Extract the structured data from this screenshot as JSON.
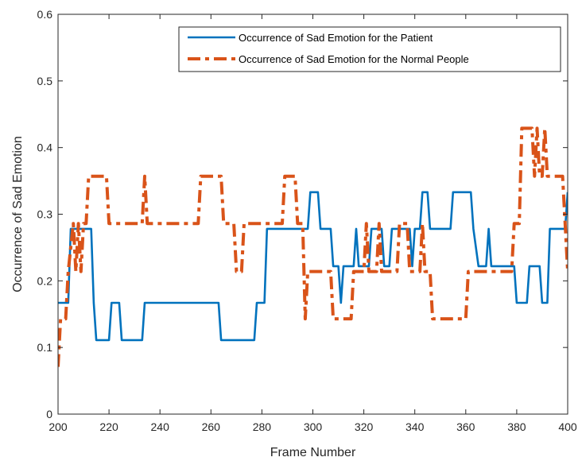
{
  "chart_data": {
    "type": "line",
    "title": "",
    "xlabel": "Frame Number",
    "ylabel": "Occurrence of Sad Emotion",
    "xlim": [
      200,
      400
    ],
    "ylim": [
      0,
      0.6
    ],
    "xticks": [
      200,
      220,
      240,
      260,
      280,
      300,
      320,
      340,
      360,
      380,
      400
    ],
    "yticks": [
      0,
      0.1,
      0.2,
      0.3,
      0.4,
      0.5,
      0.6
    ],
    "xtick_labels": [
      "200",
      "220",
      "240",
      "260",
      "280",
      "300",
      "320",
      "340",
      "360",
      "380",
      "400"
    ],
    "ytick_labels": [
      "0",
      "0.1",
      "0.2",
      "0.3",
      "0.4",
      "0.5",
      "0.6"
    ],
    "grid": false,
    "legend_position": "top-right",
    "series": [
      {
        "name": "Occurrence of Sad Emotion for the Patient",
        "color": "#0072BD",
        "style": "solid",
        "points": [
          [
            200,
            0.167
          ],
          [
            204,
            0.167
          ],
          [
            205,
            0.278
          ],
          [
            213,
            0.278
          ],
          [
            214,
            0.167
          ],
          [
            215,
            0.111
          ],
          [
            220,
            0.111
          ],
          [
            221,
            0.167
          ],
          [
            224,
            0.167
          ],
          [
            225,
            0.111
          ],
          [
            233,
            0.111
          ],
          [
            234,
            0.167
          ],
          [
            263,
            0.167
          ],
          [
            264,
            0.111
          ],
          [
            277,
            0.111
          ],
          [
            278,
            0.167
          ],
          [
            281,
            0.167
          ],
          [
            282,
            0.278
          ],
          [
            298,
            0.278
          ],
          [
            299,
            0.333
          ],
          [
            302,
            0.333
          ],
          [
            303,
            0.278
          ],
          [
            307,
            0.278
          ],
          [
            308,
            0.222
          ],
          [
            310,
            0.222
          ],
          [
            311,
            0.167
          ],
          [
            312,
            0.222
          ],
          [
            316,
            0.222
          ],
          [
            317,
            0.278
          ],
          [
            318,
            0.222
          ],
          [
            322,
            0.222
          ],
          [
            323,
            0.278
          ],
          [
            327,
            0.278
          ],
          [
            328,
            0.222
          ],
          [
            330,
            0.222
          ],
          [
            331,
            0.278
          ],
          [
            338,
            0.278
          ],
          [
            339,
            0.222
          ],
          [
            340,
            0.278
          ],
          [
            342,
            0.278
          ],
          [
            343,
            0.333
          ],
          [
            345,
            0.333
          ],
          [
            346,
            0.278
          ],
          [
            354,
            0.278
          ],
          [
            355,
            0.333
          ],
          [
            362,
            0.333
          ],
          [
            363,
            0.278
          ],
          [
            365,
            0.222
          ],
          [
            368,
            0.222
          ],
          [
            369,
            0.278
          ],
          [
            370,
            0.222
          ],
          [
            379,
            0.222
          ],
          [
            380,
            0.167
          ],
          [
            384,
            0.167
          ],
          [
            385,
            0.222
          ],
          [
            389,
            0.222
          ],
          [
            390,
            0.167
          ],
          [
            392,
            0.167
          ],
          [
            393,
            0.278
          ],
          [
            399,
            0.278
          ],
          [
            400,
            0.333
          ]
        ]
      },
      {
        "name": "Occurrence of Sad Emotion for the Normal People",
        "color": "#D95319",
        "style": "dashed",
        "points": [
          [
            200,
            0.071
          ],
          [
            201,
            0.143
          ],
          [
            203,
            0.143
          ],
          [
            204,
            0.214
          ],
          [
            206,
            0.286
          ],
          [
            207,
            0.214
          ],
          [
            208,
            0.286
          ],
          [
            209,
            0.214
          ],
          [
            210,
            0.286
          ],
          [
            211,
            0.286
          ],
          [
            212,
            0.357
          ],
          [
            219,
            0.357
          ],
          [
            220,
            0.286
          ],
          [
            233,
            0.286
          ],
          [
            234,
            0.357
          ],
          [
            235,
            0.286
          ],
          [
            255,
            0.286
          ],
          [
            256,
            0.357
          ],
          [
            264,
            0.357
          ],
          [
            265,
            0.286
          ],
          [
            269,
            0.286
          ],
          [
            270,
            0.214
          ],
          [
            272,
            0.214
          ],
          [
            273,
            0.286
          ],
          [
            288,
            0.286
          ],
          [
            289,
            0.357
          ],
          [
            293,
            0.357
          ],
          [
            294,
            0.286
          ],
          [
            296,
            0.286
          ],
          [
            297,
            0.143
          ],
          [
            298,
            0.214
          ],
          [
            307,
            0.214
          ],
          [
            308,
            0.143
          ],
          [
            315,
            0.143
          ],
          [
            316,
            0.214
          ],
          [
            320,
            0.214
          ],
          [
            321,
            0.286
          ],
          [
            322,
            0.214
          ],
          [
            325,
            0.214
          ],
          [
            326,
            0.286
          ],
          [
            327,
            0.214
          ],
          [
            333,
            0.214
          ],
          [
            334,
            0.286
          ],
          [
            337,
            0.286
          ],
          [
            338,
            0.214
          ],
          [
            342,
            0.214
          ],
          [
            343,
            0.286
          ],
          [
            344,
            0.214
          ],
          [
            346,
            0.214
          ],
          [
            347,
            0.143
          ],
          [
            360,
            0.143
          ],
          [
            361,
            0.214
          ],
          [
            378,
            0.214
          ],
          [
            379,
            0.286
          ],
          [
            381,
            0.286
          ],
          [
            382,
            0.429
          ],
          [
            386,
            0.429
          ],
          [
            387,
            0.357
          ],
          [
            388,
            0.429
          ],
          [
            389,
            0.357
          ],
          [
            390,
            0.357
          ],
          [
            391,
            0.429
          ],
          [
            392,
            0.357
          ],
          [
            395,
            0.357
          ],
          [
            396,
            0.357
          ],
          [
            398,
            0.357
          ],
          [
            399,
            0.286
          ],
          [
            400,
            0.214
          ]
        ]
      }
    ]
  }
}
